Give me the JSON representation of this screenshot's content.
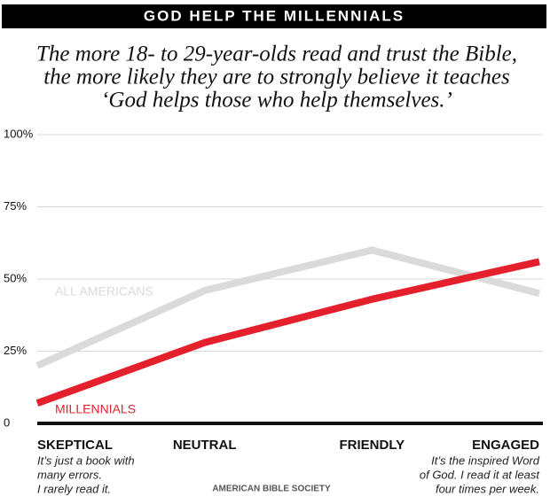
{
  "chart_data": {
    "type": "line",
    "title": "GOD HELP THE MILLENNIALS",
    "subtitle": [
      "The more 18- to 29-year-olds read and trust the Bible,",
      "the more likely they are to strongly believe it teaches",
      "‘God helps those who help themselves.’"
    ],
    "categories": [
      "SKEPTICAL",
      "NEUTRAL",
      "FRIENDLY",
      "ENGAGED"
    ],
    "annotations": [
      [
        "It’s just a book with",
        "many errors.",
        "I rarely read it."
      ],
      [
        "It’s the inspired Word",
        "of God. I read it at least",
        "four times per week."
      ]
    ],
    "series": [
      {
        "name": "ALL AMERICANS",
        "color": "#dadada",
        "values": [
          20,
          46,
          60,
          45
        ]
      },
      {
        "name": "MILLENNIALS",
        "color": "#e3202b",
        "values": [
          7,
          28,
          43,
          56
        ]
      }
    ],
    "ylim": [
      0,
      100
    ],
    "yticks": [
      0,
      {
        "value": 25,
        "label": "25%"
      },
      {
        "value": 50,
        "label": "50%"
      },
      {
        "value": 75,
        "label": "75%"
      },
      {
        "value": 100,
        "label": "100%"
      }
    ],
    "grid": true,
    "source": "AMERICAN BIBLE SOCIETY"
  }
}
